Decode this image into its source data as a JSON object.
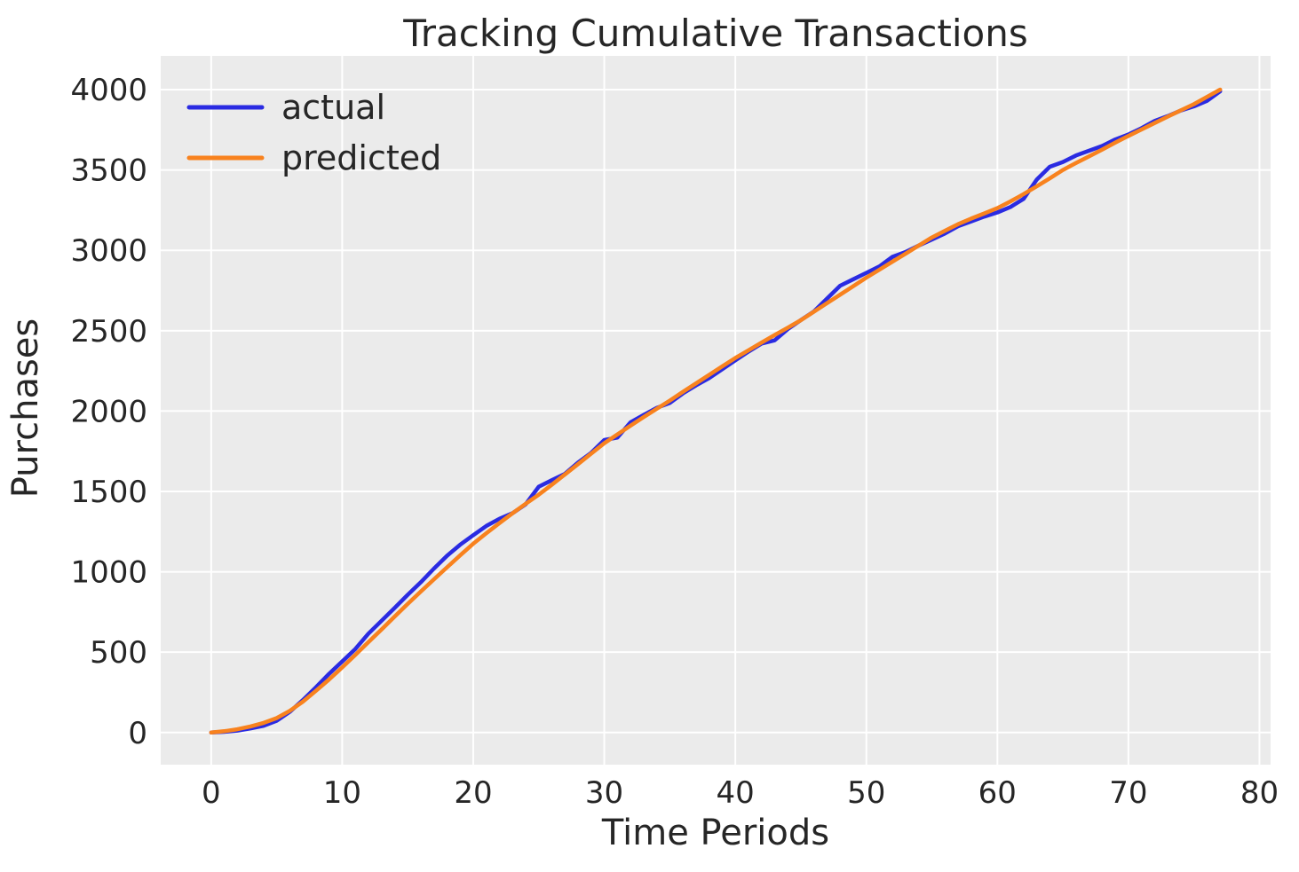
{
  "figure": {
    "title": "Tracking Cumulative Transactions",
    "background_color": "#ffffff"
  },
  "legend": {
    "position": "upper left",
    "entries": [
      "actual",
      "predicted"
    ]
  },
  "chart_data": {
    "type": "line",
    "title": "Tracking Cumulative Transactions",
    "xlabel": "Time Periods",
    "ylabel": "Purchases",
    "grid": true,
    "plot_background": "#ebebeb",
    "grid_color": "#ffffff",
    "text_color": "#262626",
    "xlim": [
      -3.85,
      80.85
    ],
    "ylim": [
      -200,
      4210
    ],
    "xticks": [
      0,
      10,
      20,
      30,
      40,
      50,
      60,
      70,
      80
    ],
    "yticks": [
      0,
      500,
      1000,
      1500,
      2000,
      2500,
      3000,
      3500,
      4000
    ],
    "x": [
      0,
      1,
      2,
      3,
      4,
      5,
      6,
      7,
      8,
      9,
      10,
      11,
      12,
      13,
      14,
      15,
      16,
      17,
      18,
      19,
      20,
      21,
      22,
      23,
      24,
      25,
      26,
      27,
      28,
      29,
      30,
      31,
      32,
      33,
      34,
      35,
      36,
      37,
      38,
      39,
      40,
      41,
      42,
      43,
      44,
      45,
      46,
      47,
      48,
      49,
      50,
      51,
      52,
      53,
      54,
      55,
      56,
      57,
      58,
      59,
      60,
      61,
      62,
      63,
      64,
      65,
      66,
      67,
      68,
      69,
      70,
      71,
      72,
      73,
      74,
      75,
      76,
      77
    ],
    "series": [
      {
        "name": "actual",
        "color": "#2a2be2",
        "values": [
          0,
          4,
          12,
          25,
          42,
          73,
          129,
          202,
          282,
          365,
          442,
          520,
          615,
          695,
          775,
          857,
          935,
          1020,
          1100,
          1168,
          1228,
          1285,
          1330,
          1365,
          1420,
          1530,
          1570,
          1610,
          1680,
          1740,
          1820,
          1835,
          1930,
          1975,
          2020,
          2050,
          2110,
          2160,
          2205,
          2260,
          2315,
          2370,
          2420,
          2440,
          2510,
          2566,
          2620,
          2700,
          2780,
          2820,
          2860,
          2900,
          2960,
          2990,
          3030,
          3067,
          3105,
          3150,
          3180,
          3210,
          3236,
          3270,
          3320,
          3440,
          3520,
          3550,
          3590,
          3620,
          3650,
          3690,
          3721,
          3760,
          3805,
          3835,
          3870,
          3896,
          3930,
          3990
        ]
      },
      {
        "name": "predicted",
        "color": "#f8821e",
        "values": [
          0,
          8,
          20,
          38,
          60,
          90,
          135,
          192,
          260,
          330,
          405,
          483,
          562,
          641,
          721,
          800,
          877,
          953,
          1028,
          1102,
          1175,
          1240,
          1303,
          1364,
          1423,
          1480,
          1542,
          1606,
          1670,
          1735,
          1800,
          1855,
          1909,
          1962,
          2014,
          2065,
          2119,
          2172,
          2225,
          2278,
          2330,
          2378,
          2426,
          2473,
          2519,
          2565,
          2618,
          2671,
          2724,
          2777,
          2830,
          2880,
          2930,
          2980,
          3030,
          3080,
          3122,
          3163,
          3198,
          3230,
          3263,
          3305,
          3350,
          3398,
          3448,
          3500,
          3543,
          3585,
          3627,
          3670,
          3712,
          3752,
          3792,
          3832,
          3871,
          3910,
          3955,
          4000
        ]
      }
    ]
  }
}
